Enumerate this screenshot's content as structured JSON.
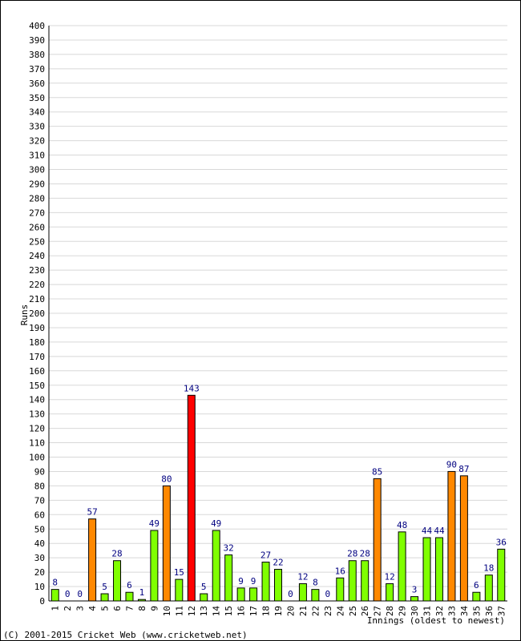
{
  "chart_data": {
    "type": "bar",
    "title": "",
    "ylabel": "Runs",
    "xlabel": "Innings (oldest to newest)",
    "ylim": [
      0,
      400
    ],
    "ytick_step": 10,
    "grid": true,
    "categories": [
      "1",
      "2",
      "3",
      "4",
      "5",
      "6",
      "7",
      "8",
      "9",
      "10",
      "11",
      "12",
      "13",
      "14",
      "15",
      "16",
      "17",
      "18",
      "19",
      "20",
      "21",
      "22",
      "23",
      "24",
      "25",
      "26",
      "27",
      "28",
      "29",
      "30",
      "31",
      "32",
      "33",
      "34",
      "35",
      "36",
      "37"
    ],
    "values": [
      8,
      0,
      0,
      57,
      5,
      28,
      6,
      1,
      49,
      80,
      15,
      143,
      5,
      49,
      32,
      9,
      9,
      27,
      22,
      0,
      12,
      8,
      0,
      16,
      28,
      28,
      85,
      12,
      48,
      3,
      44,
      44,
      90,
      87,
      6,
      18,
      36
    ],
    "bar_types": [
      "g",
      "g",
      "g",
      "o",
      "g",
      "g",
      "g",
      "g",
      "g",
      "o",
      "g",
      "r",
      "g",
      "g",
      "g",
      "g",
      "g",
      "g",
      "g",
      "g",
      "g",
      "g",
      "g",
      "g",
      "g",
      "g",
      "o",
      "g",
      "g",
      "g",
      "g",
      "g",
      "o",
      "o",
      "g",
      "g",
      "g"
    ],
    "colors": {
      "normal": "#80ff00",
      "fifty": "#ff8800",
      "hundred": "#ff0000",
      "value_label": "#000080",
      "grid": "#d8d8d8",
      "axis": "#000000"
    }
  },
  "footer": {
    "copyright": "(C) 2001-2015 Cricket Web (www.cricketweb.net)"
  }
}
